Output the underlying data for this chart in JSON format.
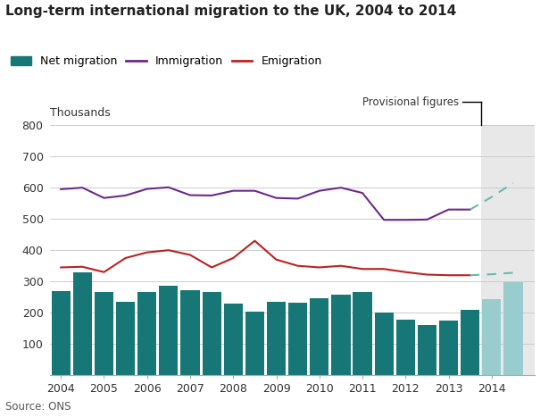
{
  "title": "Long-term international migration to the UK, 2004 to 2014",
  "ylabel": "Thousands",
  "source": "Source: ONS",
  "provisional_label": "Provisional figures",
  "background_color": "#ffffff",
  "provisional_bg": "#e8e8e8",
  "years_main": [
    2004,
    2004.5,
    2005,
    2005.5,
    2006,
    2006.5,
    2007,
    2007.5,
    2008,
    2008.5,
    2009,
    2009.5,
    2010,
    2010.5,
    2011,
    2011.5,
    2012,
    2012.5,
    2013,
    2013.5
  ],
  "immigration_main": [
    595,
    600,
    567,
    575,
    596,
    601,
    576,
    575,
    590,
    590,
    567,
    565,
    590,
    600,
    583,
    497,
    497,
    498,
    530,
    530
  ],
  "emigration_main": [
    345,
    347,
    330,
    375,
    393,
    400,
    385,
    345,
    375,
    430,
    370,
    350,
    345,
    350,
    340,
    340,
    330,
    322,
    320,
    320
  ],
  "years_prov": [
    2013.5,
    2014,
    2014.5
  ],
  "immigration_prov": [
    530,
    570,
    615
  ],
  "emigration_prov": [
    320,
    323,
    328
  ],
  "bar_years": [
    2004,
    2004.5,
    2005,
    2005.5,
    2006,
    2006.5,
    2007,
    2007.5,
    2008,
    2008.5,
    2009,
    2009.5,
    2010,
    2010.5,
    2011,
    2011.5,
    2012,
    2012.5,
    2013,
    2013.5,
    2014,
    2014.5
  ],
  "bar_values": [
    268,
    328,
    267,
    234,
    265,
    285,
    273,
    265,
    230,
    203,
    235,
    232,
    247,
    257,
    267,
    202,
    178,
    162,
    175,
    210,
    243,
    298
  ],
  "bar_colors_main": "#177777",
  "bar_colors_prov": "#99cccc",
  "bar_width": 0.44,
  "immigration_color": "#6b2a8b",
  "emigration_color": "#bb2222",
  "prov_line_color": "#66bbaa",
  "ylim": [
    0,
    800
  ],
  "yticks": [
    0,
    100,
    200,
    300,
    400,
    500,
    600,
    700,
    800
  ],
  "xlim": [
    2003.75,
    2015.0
  ],
  "xticks": [
    2004,
    2005,
    2006,
    2007,
    2008,
    2009,
    2010,
    2011,
    2012,
    2013,
    2014
  ],
  "prov_x_start": 2013.75
}
